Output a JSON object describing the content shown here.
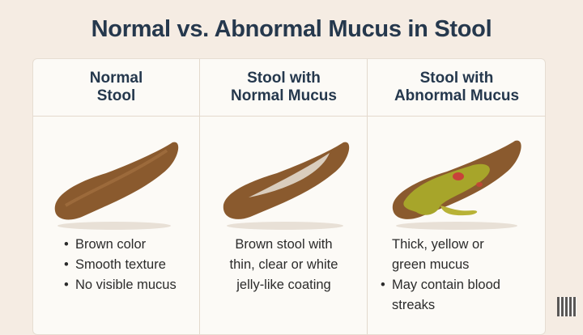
{
  "title": "Normal vs. Abnormal Mucus in Stool",
  "columns": [
    {
      "heading_lines": [
        "Normal",
        "Stool"
      ],
      "bullets": [
        "Brown color",
        "Smooth texture",
        "No visible mucus"
      ]
    },
    {
      "heading_lines": [
        "Stool with",
        "Normal Mucus"
      ],
      "text_lines": [
        "Brown stool with",
        "thin, clear or white",
        "jelly-like coating"
      ]
    },
    {
      "heading_lines": [
        "Stool with",
        "Abnormal Mucus"
      ],
      "text_lines": [
        "Thick, yellow or",
        "green mucus"
      ],
      "bullets": [
        "May contain blood streaks"
      ]
    }
  ],
  "colors": {
    "title": "#25384d",
    "stool": "#8a5a2e",
    "clear_mucus": "#e8e2d6",
    "abnormal_mucus": "#a7a52a",
    "blood": "#c8423a"
  }
}
